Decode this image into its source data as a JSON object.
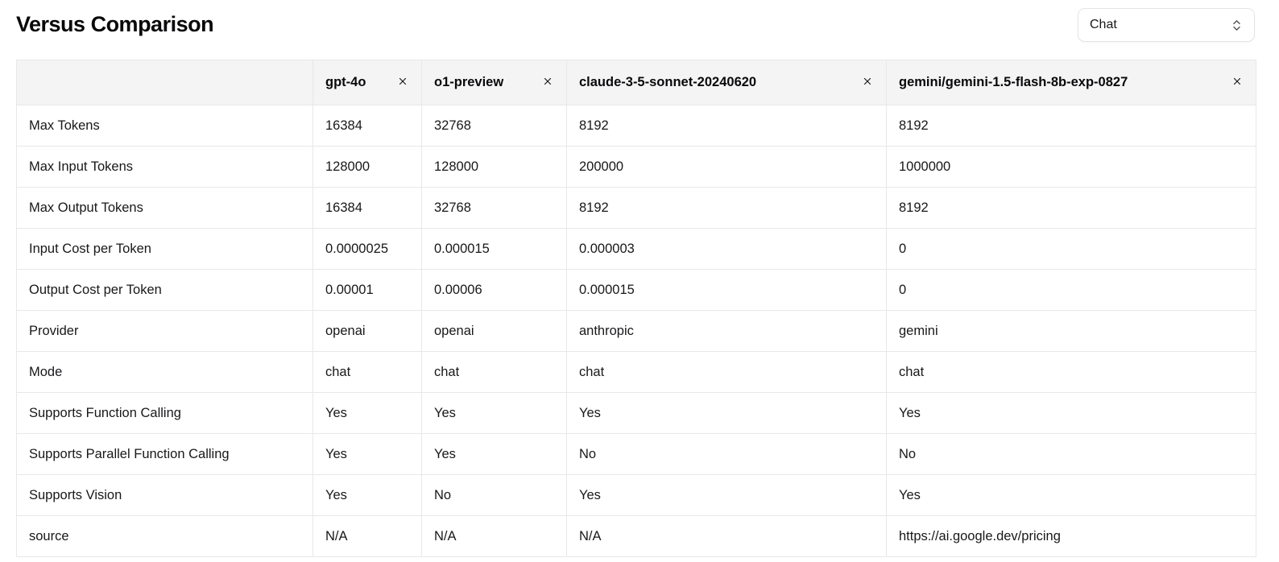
{
  "page": {
    "title": "Versus Comparison"
  },
  "mode_select": {
    "value": "Chat",
    "icon": "chevrons-up-down-icon"
  },
  "table": {
    "remove_icon": "x-icon",
    "models": [
      {
        "name": "gpt-4o"
      },
      {
        "name": "o1-preview"
      },
      {
        "name": "claude-3-5-sonnet-20240620"
      },
      {
        "name": "gemini/gemini-1.5-flash-8b-exp-0827"
      }
    ],
    "rows": [
      {
        "label": "Max Tokens",
        "values": [
          "16384",
          "32768",
          "8192",
          "8192"
        ]
      },
      {
        "label": "Max Input Tokens",
        "values": [
          "128000",
          "128000",
          "200000",
          "1000000"
        ]
      },
      {
        "label": "Max Output Tokens",
        "values": [
          "16384",
          "32768",
          "8192",
          "8192"
        ]
      },
      {
        "label": "Input Cost per Token",
        "values": [
          "0.0000025",
          "0.000015",
          "0.000003",
          "0"
        ]
      },
      {
        "label": "Output Cost per Token",
        "values": [
          "0.00001",
          "0.00006",
          "0.000015",
          "0"
        ]
      },
      {
        "label": "Provider",
        "values": [
          "openai",
          "openai",
          "anthropic",
          "gemini"
        ]
      },
      {
        "label": "Mode",
        "values": [
          "chat",
          "chat",
          "chat",
          "chat"
        ]
      },
      {
        "label": "Supports Function Calling",
        "values": [
          "Yes",
          "Yes",
          "Yes",
          "Yes"
        ]
      },
      {
        "label": "Supports Parallel Function Calling",
        "values": [
          "Yes",
          "Yes",
          "No",
          "No"
        ]
      },
      {
        "label": "Supports Vision",
        "values": [
          "Yes",
          "No",
          "Yes",
          "Yes"
        ]
      },
      {
        "label": "source",
        "values": [
          "N/A",
          "N/A",
          "N/A",
          "https://ai.google.dev/pricing"
        ]
      }
    ]
  }
}
